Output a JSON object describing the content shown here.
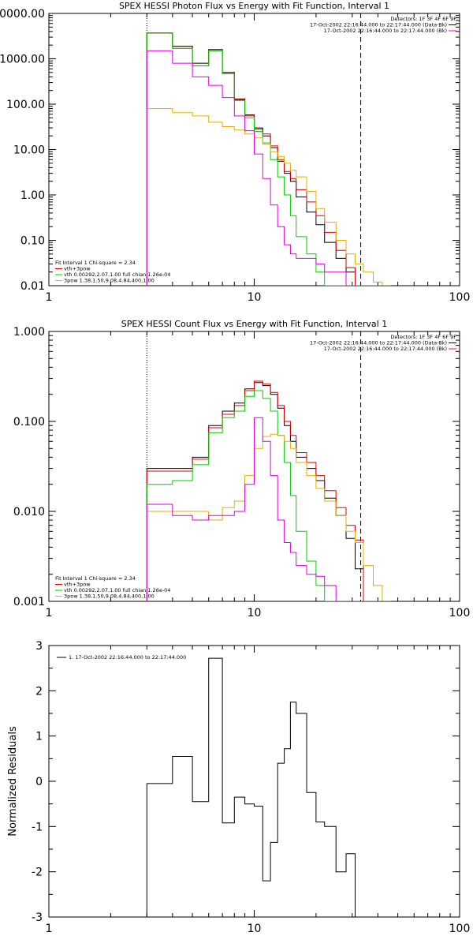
{
  "chart_data": [
    {
      "type": "line",
      "title": "SPEX HESSI Photon Flux vs Energy with Fit Function, Interval 1",
      "ylim": [
        0.01,
        10000
      ],
      "xlim": [
        1,
        100
      ],
      "xscale": "log",
      "yscale": "log",
      "yticks": [
        "0.01",
        "0.10",
        "1.00",
        "10.00",
        "100.00",
        "1000.00",
        "0000.00"
      ],
      "xticks": [
        "1",
        "10",
        "100"
      ],
      "header": {
        "detectors": "Detectors: 1F 3F 4F 6F 9F",
        "lines": [
          {
            "text": "17-Oct-2002 22:16:44.000 to 22:17:44.000 (Data-Bk)",
            "color": "#000000"
          },
          {
            "text": "17-Oct-2002 22:16:44.000 to 22:17:44.000 (Bk)",
            "color": "#e000e0"
          }
        ]
      },
      "fit_legend": {
        "title": "Fit Interval 1    Chi-square = 2.34",
        "entries": [
          {
            "text": "vth+3pow",
            "color": "#e00000"
          },
          {
            "text": "vth 0.00292,2.07,1.00  full chian 1.26e-04",
            "color": "#00cc00"
          },
          {
            "text": "3pow 1.38,1.50,9.08,4.84,400,1.00",
            "color": "#e0b000"
          }
        ]
      },
      "vlines": [
        3,
        33
      ],
      "edges": [
        3,
        4,
        5,
        6,
        7,
        8,
        9,
        10,
        11,
        12,
        13,
        14,
        15,
        16,
        18,
        20,
        22,
        25,
        28,
        31,
        34,
        38,
        42,
        46
      ],
      "series": [
        {
          "color": "#000000",
          "values": [
            3700,
            1900,
            800,
            1600,
            500,
            130,
            58,
            30,
            20,
            11,
            5.5,
            3.0,
            2.0,
            0.9,
            0.42,
            0.22,
            0.09,
            0.04,
            0.02,
            0.008,
            0.005,
            0.003,
            0.002
          ]
        },
        {
          "color": "#e00000",
          "values": [
            3700,
            1700,
            700,
            1500,
            470,
            125,
            55,
            28,
            22,
            12,
            6,
            3.3,
            2.3,
            1.3,
            0.7,
            0.35,
            0.15,
            0.06,
            0.025,
            0.01,
            0.006,
            0.004,
            0.003
          ]
        },
        {
          "color": "#00cc00",
          "values": [
            3700,
            1700,
            700,
            1500,
            470,
            120,
            50,
            25,
            14,
            6,
            2.5,
            1.0,
            0.35,
            0.12,
            0.05,
            0.02,
            0.008,
            0.004,
            0.003,
            0.002,
            0.001,
            0.001,
            0.001
          ]
        },
        {
          "color": "#e0b000",
          "values": [
            80,
            65,
            55,
            40,
            32,
            27,
            22,
            18,
            13,
            9,
            7,
            5,
            3.5,
            2.5,
            1.2,
            0.5,
            0.25,
            0.1,
            0.05,
            0.03,
            0.02,
            0.012,
            0.008
          ]
        },
        {
          "color": "#e000e0",
          "values": [
            1500,
            800,
            400,
            260,
            140,
            55,
            26,
            8,
            2.3,
            0.6,
            0.2,
            0.08,
            0.05,
            0.04,
            0.04,
            0.03,
            0.02,
            0.02,
            0.01,
            0.008,
            0.005,
            0.003,
            0.002
          ]
        }
      ]
    },
    {
      "type": "line",
      "title": "SPEX HESSI Count Flux vs Energy with Fit Function, Interval 1",
      "ylim": [
        0.001,
        1.0
      ],
      "xlim": [
        1,
        100
      ],
      "xscale": "log",
      "yscale": "log",
      "yticks": [
        "0.001",
        "0.010",
        "0.100",
        "1.000"
      ],
      "xticks": [
        "1",
        "10",
        "100"
      ],
      "header": {
        "detectors": "Detectors: 1F 3F 4F 6F 9F",
        "lines": [
          {
            "text": "17-Oct-2002 22:16:44.000 to 22:17:44.000 (Data-Bk)",
            "color": "#000000"
          },
          {
            "text": "17-Oct-2002 22:16:44.000 to 22:17:44.000 (Bk)",
            "color": "#e000e0"
          }
        ]
      },
      "fit_legend": {
        "title": "Fit Interval 1    Chi-square = 2.34",
        "entries": [
          {
            "text": "vth+3pow",
            "color": "#e00000"
          },
          {
            "text": "vth 0.00292,2.07,1.00  full chian 1.26e-04",
            "color": "#00cc00"
          },
          {
            "text": "3pow 1.38,1.50,9.08,4.84,400,1.00",
            "color": "#e0b000"
          }
        ]
      },
      "vlines": [
        3,
        33
      ],
      "edges": [
        3,
        4,
        5,
        6,
        7,
        8,
        9,
        10,
        11,
        12,
        13,
        14,
        15,
        16,
        18,
        20,
        22,
        25,
        28,
        31,
        34,
        38,
        42,
        46
      ],
      "series": [
        {
          "color": "#000000",
          "values": [
            0.03,
            0.03,
            0.04,
            0.09,
            0.13,
            0.16,
            0.23,
            0.27,
            0.25,
            0.2,
            0.14,
            0.09,
            0.06,
            0.04,
            0.03,
            0.022,
            0.014,
            0.009,
            0.005,
            0.0023,
            0.001,
            0.001,
            0.001
          ]
        },
        {
          "color": "#e00000",
          "values": [
            0.028,
            0.028,
            0.038,
            0.085,
            0.12,
            0.15,
            0.22,
            0.28,
            0.26,
            0.21,
            0.15,
            0.1,
            0.07,
            0.045,
            0.035,
            0.025,
            0.017,
            0.011,
            0.007,
            0.0048,
            0.001,
            0.001,
            0.001
          ]
        },
        {
          "color": "#00cc00",
          "values": [
            0.02,
            0.022,
            0.033,
            0.075,
            0.11,
            0.13,
            0.19,
            0.22,
            0.18,
            0.13,
            0.07,
            0.035,
            0.015,
            0.006,
            0.0028,
            0.0015,
            0.001,
            0.001,
            0.001,
            0.001,
            0.001,
            0.001,
            0.001
          ]
        },
        {
          "color": "#e0b000",
          "values": [
            0.01,
            0.01,
            0.01,
            0.008,
            0.011,
            0.013,
            0.025,
            0.05,
            0.068,
            0.072,
            0.07,
            0.06,
            0.05,
            0.035,
            0.025,
            0.018,
            0.013,
            0.009,
            0.006,
            0.0045,
            0.0025,
            0.0015,
            0.001
          ]
        },
        {
          "color": "#e000e0",
          "values": [
            0.012,
            0.009,
            0.008,
            0.009,
            0.009,
            0.01,
            0.02,
            0.11,
            0.06,
            0.025,
            0.008,
            0.0045,
            0.0035,
            0.0025,
            0.002,
            0.0019,
            0.0015,
            0.001,
            0.001,
            0.001,
            0.001,
            0.001,
            0.001
          ]
        }
      ]
    },
    {
      "type": "line",
      "ylabel": "Normalized Residuals",
      "ylim": [
        -3,
        3
      ],
      "xlim": [
        1,
        100
      ],
      "xscale": "log",
      "yscale": "linear",
      "yticks": [
        "-3",
        "-2",
        "-1",
        "0",
        "1",
        "2",
        "3"
      ],
      "xticks": [
        "1",
        "10",
        "100"
      ],
      "legend": {
        "text": "1. 17-Oct-2002 22:16:44.000 to 22:17:44.000",
        "color": "#000000"
      },
      "edges": [
        3,
        3.5,
        4,
        5,
        6,
        7,
        8,
        9,
        10,
        11,
        12,
        13,
        14,
        15,
        16,
        18,
        20,
        22,
        25,
        28,
        31,
        34
      ],
      "series": [
        {
          "color": "#000000",
          "values": [
            -0.05,
            -0.05,
            0.55,
            -0.45,
            2.72,
            -0.92,
            -0.35,
            -0.5,
            -0.55,
            -2.2,
            -1.35,
            0.4,
            0.72,
            1.75,
            1.5,
            -0.25,
            -0.9,
            -1.0,
            -2.0,
            -1.6,
            -3.1
          ]
        }
      ]
    }
  ]
}
